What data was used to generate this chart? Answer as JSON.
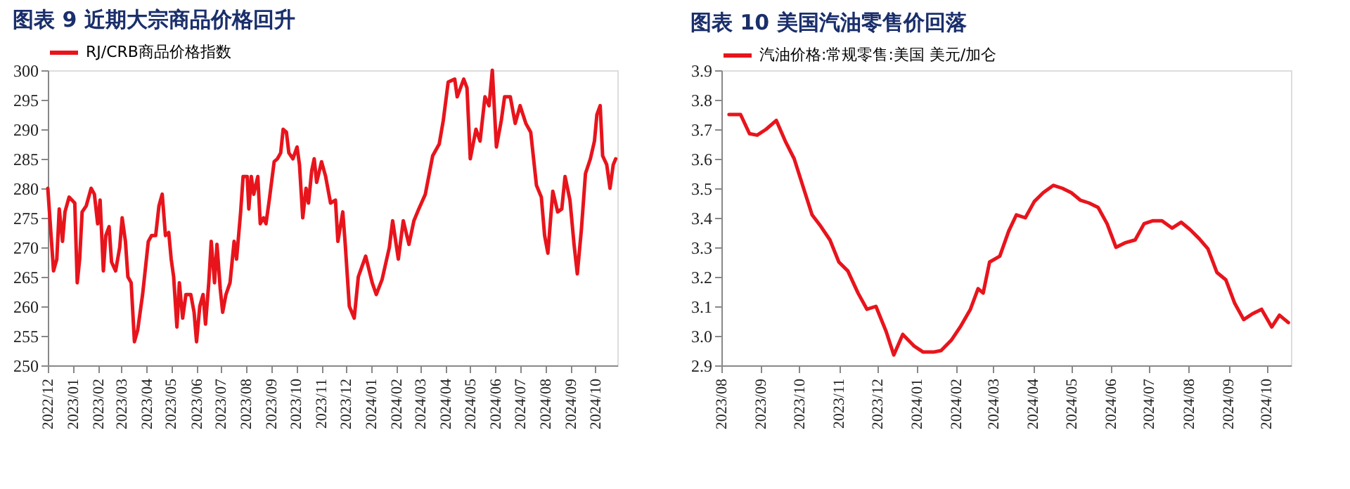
{
  "chart_data": [
    {
      "type": "line",
      "title": "图表 9    近期大宗商品价格回升",
      "legend": "top",
      "grid": false,
      "marker": "none",
      "line_style": "solid",
      "xlim": [
        "2022-12-01",
        "2024-10-28"
      ],
      "ylim": [
        250,
        300
      ],
      "yticks": [
        250,
        255,
        260,
        265,
        270,
        275,
        280,
        285,
        290,
        295,
        300
      ],
      "xticks": [
        {
          "value": "2022-12",
          "label": "2022/12"
        },
        {
          "value": "2023-01",
          "label": "2023/01"
        },
        {
          "value": "2023-02",
          "label": "2023/02"
        },
        {
          "value": "2023-03",
          "label": "2023/03"
        },
        {
          "value": "2023-04",
          "label": "2023/04"
        },
        {
          "value": "2023-05",
          "label": "2023/05"
        },
        {
          "value": "2023-06",
          "label": "2023/06"
        },
        {
          "value": "2023-07",
          "label": "2023/07"
        },
        {
          "value": "2023-08",
          "label": "2023/08"
        },
        {
          "value": "2023-09",
          "label": "2023/09"
        },
        {
          "value": "2023-10",
          "label": "2023/10"
        },
        {
          "value": "2023-11",
          "label": "2023/11"
        },
        {
          "value": "2023-12",
          "label": "2023/12"
        },
        {
          "value": "2024-01",
          "label": "2024/01"
        },
        {
          "value": "2024-02",
          "label": "2024/02"
        },
        {
          "value": "2024-03",
          "label": "2024/03"
        },
        {
          "value": "2024-04",
          "label": "2024/04"
        },
        {
          "value": "2024-05",
          "label": "2024/05"
        },
        {
          "value": "2024-06",
          "label": "2024/06"
        },
        {
          "value": "2024-07",
          "label": "2024/07"
        },
        {
          "value": "2024-08",
          "label": "2024/08"
        },
        {
          "value": "2024-09",
          "label": "2024/09"
        },
        {
          "value": "2024-10",
          "label": "2024/10"
        }
      ],
      "series": [
        {
          "name": "RJ/CRB商品价格指数",
          "color": "#e8141c",
          "x": [
            "2022-12-01",
            "2022-12-05",
            "2022-12-08",
            "2022-12-12",
            "2022-12-15",
            "2022-12-19",
            "2022-12-22",
            "2022-12-27",
            "2023-01-03",
            "2023-01-06",
            "2023-01-09",
            "2023-01-12",
            "2023-01-17",
            "2023-01-23",
            "2023-01-27",
            "2023-01-31",
            "2023-02-03",
            "2023-02-07",
            "2023-02-10",
            "2023-02-14",
            "2023-02-17",
            "2023-02-22",
            "2023-02-27",
            "2023-03-02",
            "2023-03-06",
            "2023-03-09",
            "2023-03-13",
            "2023-03-17",
            "2023-03-21",
            "2023-03-27",
            "2023-04-03",
            "2023-04-07",
            "2023-04-12",
            "2023-04-16",
            "2023-04-20",
            "2023-04-24",
            "2023-04-28",
            "2023-05-01",
            "2023-05-04",
            "2023-05-08",
            "2023-05-11",
            "2023-05-15",
            "2023-05-19",
            "2023-05-25",
            "2023-05-29",
            "2023-06-01",
            "2023-06-05",
            "2023-06-09",
            "2023-06-12",
            "2023-06-16",
            "2023-06-19",
            "2023-06-23",
            "2023-06-26",
            "2023-06-30",
            "2023-07-03",
            "2023-07-07",
            "2023-07-12",
            "2023-07-17",
            "2023-07-20",
            "2023-07-25",
            "2023-07-28",
            "2023-08-02",
            "2023-08-04",
            "2023-08-07",
            "2023-08-10",
            "2023-08-15",
            "2023-08-18",
            "2023-08-22",
            "2023-08-25",
            "2023-08-29",
            "2023-09-04",
            "2023-09-08",
            "2023-09-12",
            "2023-09-15",
            "2023-09-19",
            "2023-09-22",
            "2023-09-27",
            "2023-10-02",
            "2023-10-05",
            "2023-10-09",
            "2023-10-13",
            "2023-10-16",
            "2023-10-20",
            "2023-10-23",
            "2023-10-26",
            "2023-11-01",
            "2023-11-06",
            "2023-11-12",
            "2023-11-18",
            "2023-11-21",
            "2023-11-27",
            "2023-11-30",
            "2023-12-05",
            "2023-12-11",
            "2023-12-16",
            "2023-12-25",
            "2024-01-02",
            "2024-01-07",
            "2024-01-14",
            "2024-01-23",
            "2024-01-27",
            "2024-02-03",
            "2024-02-09",
            "2024-02-16",
            "2024-02-22",
            "2024-02-28",
            "2024-03-07",
            "2024-03-16",
            "2024-03-24",
            "2024-03-29",
            "2024-04-04",
            "2024-04-12",
            "2024-04-15",
            "2024-04-23",
            "2024-04-27",
            "2024-05-01",
            "2024-05-08",
            "2024-05-13",
            "2024-05-19",
            "2024-05-24",
            "2024-05-28",
            "2024-06-02",
            "2024-06-08",
            "2024-06-12",
            "2024-06-19",
            "2024-06-25",
            "2024-07-01",
            "2024-07-08",
            "2024-07-14",
            "2024-07-21",
            "2024-07-27",
            "2024-07-31",
            "2024-08-04",
            "2024-08-10",
            "2024-08-16",
            "2024-08-21",
            "2024-08-25",
            "2024-08-31",
            "2024-09-05",
            "2024-09-09",
            "2024-09-14",
            "2024-09-19",
            "2024-09-25",
            "2024-09-30",
            "2024-10-03",
            "2024-10-07",
            "2024-10-10",
            "2024-10-15",
            "2024-10-19",
            "2024-10-23",
            "2024-10-26"
          ],
          "values": [
            280,
            272,
            266,
            268,
            276.5,
            271,
            276,
            278.5,
            277.5,
            264,
            268,
            276,
            277,
            280,
            279,
            274,
            278,
            266,
            272,
            273.5,
            267.5,
            266,
            270,
            275,
            271,
            265,
            264,
            254,
            256,
            262,
            271,
            272,
            272,
            277,
            279,
            272,
            272.5,
            268,
            265,
            256.5,
            264,
            258,
            262,
            262,
            259,
            254,
            260,
            262,
            257,
            264,
            271,
            264,
            270.5,
            263,
            259,
            262,
            264,
            271,
            268,
            276,
            282,
            282,
            276.5,
            282,
            279,
            282,
            274,
            275,
            274,
            278,
            284.5,
            285,
            286,
            290,
            289.5,
            286,
            285,
            287,
            284,
            275,
            280,
            277.5,
            283,
            285,
            281,
            284.5,
            282,
            277.5,
            278,
            271,
            276,
            270.5,
            260,
            258,
            265,
            268.5,
            264,
            262,
            264.5,
            270,
            274.5,
            268,
            274.5,
            270.5,
            274.5,
            276.5,
            279,
            285.5,
            287.5,
            291.5,
            298,
            298.5,
            295.5,
            298.5,
            297,
            285,
            290,
            288,
            295.5,
            294,
            300,
            287,
            291.5,
            295.5,
            295.5,
            291,
            294,
            291,
            289.5,
            280.5,
            278.5,
            272,
            269,
            279.5,
            276,
            276.5,
            282,
            278,
            270.5,
            265.5,
            273,
            282.5,
            285,
            288,
            292.5,
            294,
            285.5,
            284,
            280,
            284,
            285
          ]
        }
      ]
    },
    {
      "type": "line",
      "title": "图表 10    美国汽油零售价回落",
      "legend": "top",
      "grid": false,
      "marker": "none",
      "line_style": "solid",
      "xlim": [
        "2023-08-01",
        "2024-10-20"
      ],
      "ylim": [
        2.9,
        3.9
      ],
      "yticks": [
        {
          "value": 2.9,
          "label": "2.9"
        },
        {
          "value": 3.0,
          "label": "3.0"
        },
        {
          "value": 3.1,
          "label": "3.1"
        },
        {
          "value": 3.2,
          "label": "3.2"
        },
        {
          "value": 3.3,
          "label": "3.3"
        },
        {
          "value": 3.4,
          "label": "3.4"
        },
        {
          "value": 3.5,
          "label": "3.5"
        },
        {
          "value": 3.6,
          "label": "3.6"
        },
        {
          "value": 3.7,
          "label": "3.7"
        },
        {
          "value": 3.8,
          "label": "3.8"
        },
        {
          "value": 3.9,
          "label": "3.9"
        }
      ],
      "xticks": [
        {
          "value": "2023-08",
          "label": "2023/08"
        },
        {
          "value": "2023-09",
          "label": "2023/09"
        },
        {
          "value": "2023-10",
          "label": "2023/10"
        },
        {
          "value": "2023-11",
          "label": "2023/11"
        },
        {
          "value": "2023-12",
          "label": "2023/12"
        },
        {
          "value": "2024-01",
          "label": "2024/01"
        },
        {
          "value": "2024-02",
          "label": "2024/02"
        },
        {
          "value": "2024-03",
          "label": "2024/03"
        },
        {
          "value": "2024-04",
          "label": "2024/04"
        },
        {
          "value": "2024-05",
          "label": "2024/05"
        },
        {
          "value": "2024-06",
          "label": "2024/06"
        },
        {
          "value": "2024-07",
          "label": "2024/07"
        },
        {
          "value": "2024-08",
          "label": "2024/08"
        },
        {
          "value": "2024-09",
          "label": "2024/09"
        },
        {
          "value": "2024-10",
          "label": "2024/10"
        }
      ],
      "series": [
        {
          "name": "汽油价格:常规零售:美国 美元/加仑",
          "color": "#e8141c",
          "x": [
            "2023-08-07",
            "2023-08-16",
            "2023-08-23",
            "2023-08-29",
            "2023-09-05",
            "2023-09-13",
            "2023-09-20",
            "2023-09-27",
            "2023-10-04",
            "2023-10-11",
            "2023-10-18",
            "2023-10-25",
            "2023-11-01",
            "2023-11-08",
            "2023-11-16",
            "2023-11-23",
            "2023-11-30",
            "2023-12-08",
            "2023-12-14",
            "2023-12-21",
            "2023-12-30",
            "2024-01-06",
            "2024-01-14",
            "2024-01-20",
            "2024-01-28",
            "2024-02-04",
            "2024-02-12",
            "2024-02-18",
            "2024-02-22",
            "2024-02-27",
            "2024-03-06",
            "2024-03-13",
            "2024-03-19",
            "2024-03-26",
            "2024-04-02",
            "2024-04-09",
            "2024-04-17",
            "2024-04-24",
            "2024-05-01",
            "2024-05-08",
            "2024-05-15",
            "2024-05-22",
            "2024-05-29",
            "2024-06-05",
            "2024-06-12",
            "2024-06-20",
            "2024-06-27",
            "2024-07-04",
            "2024-07-11",
            "2024-07-19",
            "2024-07-26",
            "2024-08-02",
            "2024-08-09",
            "2024-08-16",
            "2024-08-23",
            "2024-08-30",
            "2024-09-06",
            "2024-09-13",
            "2024-09-20",
            "2024-09-27",
            "2024-10-05",
            "2024-10-11",
            "2024-10-18"
          ],
          "values": [
            3.75,
            3.75,
            3.685,
            3.68,
            3.7,
            3.73,
            3.66,
            3.6,
            3.505,
            3.41,
            3.37,
            3.325,
            3.25,
            3.22,
            3.145,
            3.09,
            3.1,
            3.015,
            2.935,
            3.005,
            2.965,
            2.945,
            2.945,
            2.95,
            2.985,
            3.03,
            3.09,
            3.16,
            3.145,
            3.25,
            3.27,
            3.355,
            3.41,
            3.4,
            3.455,
            3.485,
            3.51,
            3.5,
            3.485,
            3.46,
            3.45,
            3.435,
            3.38,
            3.3,
            3.315,
            3.325,
            3.38,
            3.39,
            3.39,
            3.365,
            3.385,
            3.36,
            3.33,
            3.295,
            3.215,
            3.19,
            3.11,
            3.055,
            3.075,
            3.09,
            3.03,
            3.07,
            3.045
          ]
        }
      ]
    }
  ]
}
